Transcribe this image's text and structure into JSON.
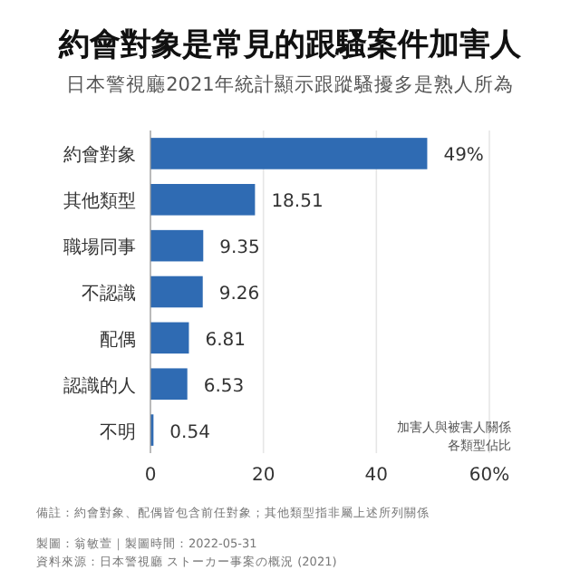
{
  "chart_data": {
    "type": "bar",
    "orientation": "horizontal",
    "title": "約會對象是常見的跟騷案件加害人",
    "subtitle": "日本警視廳2021年統計顯示跟蹤騷擾多是熟人所為",
    "categories": [
      "約會對象",
      "其他類型",
      "職場同事",
      "不認識",
      "配偶",
      "認識的人",
      "不明"
    ],
    "values": [
      49,
      18.51,
      9.35,
      9.26,
      6.81,
      6.53,
      0.54
    ],
    "value_labels": [
      "49%",
      "18.51",
      "9.35",
      "9.26",
      "6.81",
      "6.53",
      "0.54"
    ],
    "color": "#2f6bb3",
    "xlim": [
      0,
      60
    ],
    "xticks": [
      0,
      20,
      40,
      {
        "value": 60,
        "label": "60%"
      }
    ],
    "grid": "x",
    "annotations": [
      "加害人與被害人關係各類型佔比",
      "備註：約會對象、配偶皆包含前任對象；其他類型指非屬上述所列關係",
      "製圖：翁敏萱｜製圖時間：2022-05-31",
      "資料來源：日本警視廳 ストーカー事案の概況 (2021)"
    ]
  }
}
